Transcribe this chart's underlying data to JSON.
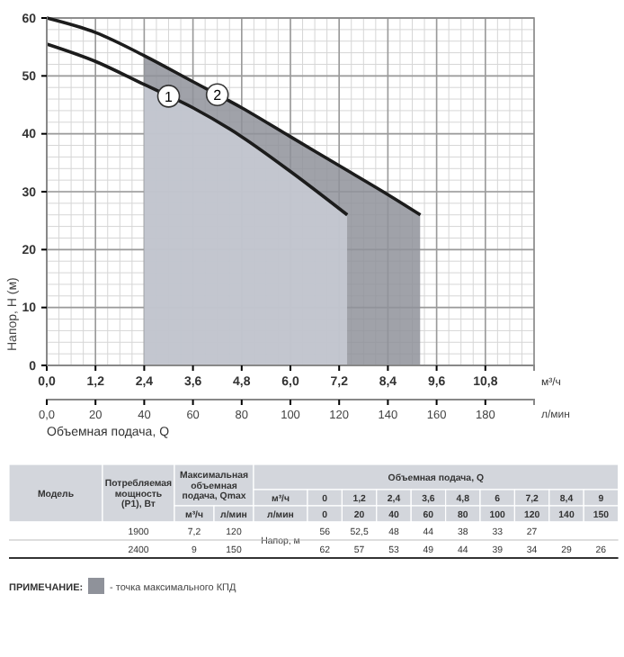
{
  "chart_data": {
    "type": "line",
    "ylabel": "Напор, H (м)",
    "xlabel": "м³/ч",
    "x2label": "л/мин",
    "xlim": [
      0,
      12
    ],
    "xticks": [
      {
        "value": 0,
        "label": "0,0"
      },
      {
        "value": 1.2,
        "label": "1,2"
      },
      {
        "value": 2.4,
        "label": "2,4"
      },
      {
        "value": 3.6,
        "label": "3,6"
      },
      {
        "value": 4.8,
        "label": "4,8"
      },
      {
        "value": 6,
        "label": "6,0"
      },
      {
        "value": 7.2,
        "label": "7,2"
      },
      {
        "value": 8.4,
        "label": "8,4"
      },
      {
        "value": 9.6,
        "label": "9,6"
      },
      {
        "value": 10.8,
        "label": "10,8"
      }
    ],
    "x2lim": [
      0,
      200
    ],
    "x2ticks": [
      {
        "value": 0,
        "label": "0,0"
      },
      20,
      40,
      60,
      80,
      100,
      120,
      140,
      160,
      180
    ],
    "ylim": [
      0,
      60
    ],
    "yticks": [
      0,
      10,
      20,
      30,
      40,
      50,
      60
    ],
    "grid": true,
    "series": [
      {
        "name": "1",
        "color": "#1c1c1c",
        "x": [
          0,
          1.2,
          2.4,
          3.6,
          4.8,
          6,
          7.4
        ],
        "values": [
          55.5,
          52.5,
          48.5,
          44.5,
          39.5,
          33.5,
          26
        ]
      },
      {
        "name": "2",
        "color": "#1c1c1c",
        "x": [
          0,
          1.2,
          2.4,
          3.6,
          4.8,
          6,
          7.2,
          8.4,
          9.2
        ],
        "values": [
          60,
          57.5,
          53.5,
          49,
          44.5,
          39.5,
          34.5,
          29.5,
          26
        ]
      }
    ],
    "bands": [
      {
        "axis": "x",
        "from": 2.4,
        "to": 9.2,
        "color": "#8f929a"
      },
      {
        "axis": "x",
        "from": 2.4,
        "to": 7.4,
        "color": "#c9cdd6"
      }
    ],
    "annotations": [
      "Объемная подача, Q",
      "Модель",
      "Потребляемая мощность (P1), Вт",
      "Максимальная объемная подача, Qmax",
      "Объемная подача, Q",
      "м³/ч",
      "0",
      "1,2",
      "2,4",
      "3,6",
      "4,8",
      "6",
      "7,2",
      "8,4",
      "9",
      "м³/ч",
      "л/мин",
      "л/мин",
      "0",
      "20",
      "40",
      "60",
      "80",
      "100",
      "120",
      "140",
      "150",
      "1900",
      "7,2",
      "120",
      "56",
      "52,5",
      "48",
      "44",
      "38",
      "33",
      "27",
      "Напор, м",
      "2400",
      "9",
      "150",
      "62",
      "57",
      "53",
      "49",
      "44",
      "39",
      "34",
      "29",
      "26",
      "ПРИМЕЧАНИЕ:",
      "- точка максимального КПД"
    ]
  }
}
